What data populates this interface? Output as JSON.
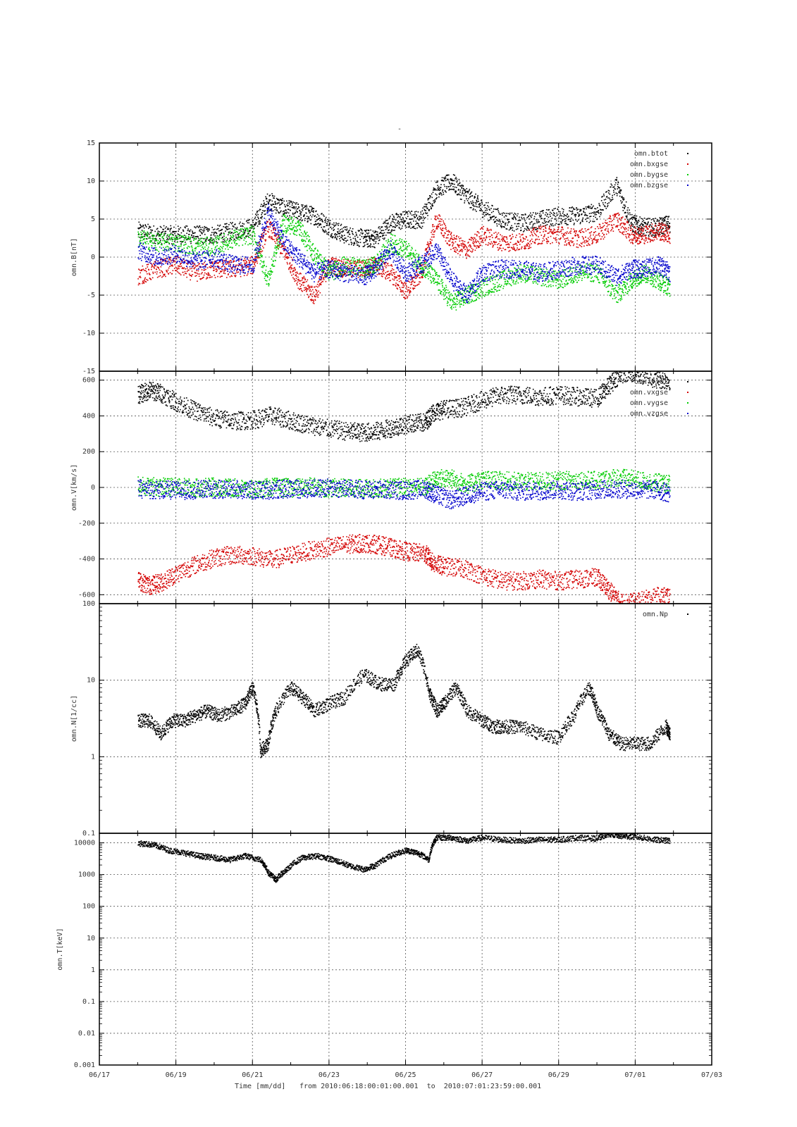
{
  "figure": {
    "title_mark": "-",
    "xlabel": "Time [mm/dd]",
    "range_text": "from 2010:06:18:00:01:00.001  to  2010:07:01:23:59:00.001",
    "x_tick_labels": [
      "06/17",
      "06/19",
      "06/21",
      "06/23",
      "06/25",
      "06/27",
      "06/29",
      "07/01",
      "07/03"
    ]
  },
  "chart_data": [
    {
      "type": "scatter",
      "ylabel": "omn.B[nT]",
      "ylim": [
        -15,
        15
      ],
      "yscale": "linear",
      "yticks": [
        -15,
        -10,
        -5,
        0,
        5,
        10,
        15
      ],
      "ytick_labels": [
        "-15",
        "-10",
        "-5",
        "0",
        "5",
        "10",
        "15"
      ],
      "xlim_days": [
        0,
        16
      ],
      "x_day_axis_note": "06/17 = 0",
      "grid": true,
      "legend_placement": "top-right",
      "series": [
        {
          "name": "omn.btot",
          "color": "#000000",
          "x": [
            1.0,
            1.5,
            2.0,
            2.5,
            3.0,
            3.5,
            4.0,
            4.4,
            4.8,
            5.2,
            5.6,
            6.0,
            6.4,
            6.9,
            7.2,
            7.6,
            8.0,
            8.4,
            8.8,
            9.2,
            9.6,
            10.0,
            10.5,
            11.0,
            11.5,
            12.0,
            12.5,
            13.0,
            13.5,
            13.9,
            14.2,
            14.6,
            14.9
          ],
          "y": [
            3.5,
            3.0,
            3.0,
            3.0,
            3.0,
            3.5,
            4.0,
            7.5,
            6.5,
            6.0,
            5.5,
            4.0,
            3.0,
            2.5,
            2.5,
            4.5,
            5.0,
            5.0,
            9.0,
            10.0,
            8.0,
            6.5,
            5.0,
            4.5,
            5.0,
            5.5,
            5.5,
            6.0,
            9.5,
            4.5,
            4.0,
            4.0,
            4.5
          ]
        },
        {
          "name": "omn.bxgse",
          "color": "#d40000",
          "x": [
            1.0,
            1.5,
            2.0,
            2.5,
            3.0,
            3.5,
            4.0,
            4.4,
            4.8,
            5.2,
            5.6,
            6.0,
            6.4,
            6.9,
            7.2,
            7.6,
            8.0,
            8.4,
            8.8,
            9.2,
            9.6,
            10.0,
            10.5,
            11.0,
            11.5,
            12.0,
            12.5,
            13.0,
            13.5,
            13.9,
            14.2,
            14.6,
            14.9
          ],
          "y": [
            -2.5,
            -1.5,
            -1.0,
            -2.0,
            -1.5,
            -1.5,
            -1.0,
            4.0,
            1.0,
            -3.0,
            -5.0,
            -1.0,
            -1.5,
            -1.5,
            -1.0,
            -2.0,
            -4.5,
            -2.0,
            5.0,
            2.0,
            1.0,
            3.0,
            2.0,
            2.0,
            3.0,
            3.0,
            2.5,
            3.0,
            5.0,
            3.0,
            3.0,
            3.5,
            3.0
          ]
        },
        {
          "name": "omn.bygse",
          "color": "#00cc00",
          "x": [
            1.0,
            1.5,
            2.0,
            2.5,
            3.0,
            3.5,
            4.0,
            4.4,
            4.8,
            5.2,
            5.6,
            6.0,
            6.4,
            6.9,
            7.2,
            7.6,
            8.0,
            8.4,
            8.8,
            9.2,
            9.6,
            10.0,
            10.5,
            11.0,
            11.5,
            12.0,
            12.5,
            13.0,
            13.5,
            13.9,
            14.2,
            14.6,
            14.9
          ],
          "y": [
            2.5,
            2.0,
            2.0,
            1.5,
            1.5,
            2.5,
            3.0,
            -3.0,
            4.5,
            4.0,
            0.5,
            -2.0,
            -1.0,
            -1.5,
            -1.0,
            2.0,
            1.0,
            -1.0,
            -3.0,
            -6.0,
            -5.0,
            -4.0,
            -3.0,
            -2.0,
            -2.5,
            -3.0,
            -2.0,
            -2.0,
            -5.0,
            -3.0,
            -2.0,
            -3.0,
            -4.0
          ]
        },
        {
          "name": "omn.bzgse",
          "color": "#0000cc",
          "x": [
            1.0,
            1.5,
            2.0,
            2.5,
            3.0,
            3.5,
            4.0,
            4.4,
            4.8,
            5.2,
            5.6,
            6.0,
            6.4,
            6.9,
            7.2,
            7.6,
            8.0,
            8.4,
            8.8,
            9.2,
            9.6,
            10.0,
            10.5,
            11.0,
            11.5,
            12.0,
            12.5,
            13.0,
            13.5,
            13.9,
            14.2,
            14.6,
            14.9
          ],
          "y": [
            1.0,
            0.0,
            0.5,
            -0.5,
            0.0,
            -1.0,
            -1.0,
            6.0,
            2.0,
            0.0,
            -2.0,
            -1.5,
            -2.0,
            -2.5,
            -1.5,
            1.0,
            -2.0,
            -1.0,
            1.0,
            -3.0,
            -5.0,
            -2.0,
            -1.5,
            -1.5,
            -2.0,
            -1.5,
            -1.0,
            -1.0,
            -2.5,
            -1.5,
            -1.5,
            -1.0,
            -2.0
          ]
        }
      ]
    },
    {
      "type": "scatter",
      "ylabel": "omn.V[km/s]",
      "ylim": [
        -650,
        650
      ],
      "yscale": "linear",
      "yticks": [
        -600,
        -400,
        -200,
        0,
        200,
        400,
        600
      ],
      "ytick_labels": [
        "-600",
        "-400",
        "-200",
        "0",
        "200",
        "400",
        "600"
      ],
      "xlim_days": [
        0,
        16
      ],
      "grid": true,
      "legend_placement": "top-right",
      "series": [
        {
          "name": "omn.vtot",
          "color": "#000000",
          "x": [
            1.0,
            1.3,
            1.6,
            2.0,
            2.5,
            3.0,
            3.5,
            4.0,
            4.5,
            5.0,
            5.5,
            6.0,
            6.5,
            6.9,
            7.3,
            7.7,
            8.1,
            8.5,
            8.7,
            9.0,
            9.5,
            10.0,
            10.5,
            11.0,
            11.5,
            12.0,
            12.5,
            13.0,
            13.3,
            13.6,
            14.0,
            14.5,
            14.9
          ],
          "y": [
            520,
            545,
            530,
            480,
            430,
            390,
            375,
            380,
            405,
            375,
            350,
            330,
            315,
            310,
            318,
            340,
            360,
            365,
            420,
            440,
            450,
            490,
            520,
            520,
            510,
            520,
            510,
            500,
            570,
            640,
            640,
            610,
            600
          ]
        },
        {
          "name": "omn.vxgse",
          "color": "#d40000",
          "x": [
            1.0,
            1.3,
            1.6,
            2.0,
            2.5,
            3.0,
            3.5,
            4.0,
            4.5,
            5.0,
            5.5,
            6.0,
            6.5,
            6.9,
            7.3,
            7.7,
            8.1,
            8.5,
            8.7,
            9.0,
            9.5,
            10.0,
            10.5,
            11.0,
            11.5,
            12.0,
            12.5,
            13.0,
            13.3,
            13.6,
            14.0,
            14.5,
            14.9
          ],
          "y": [
            -520,
            -545,
            -530,
            -480,
            -430,
            -390,
            -375,
            -380,
            -405,
            -375,
            -350,
            -330,
            -315,
            -310,
            -318,
            -340,
            -360,
            -365,
            -420,
            -440,
            -450,
            -490,
            -520,
            -520,
            -510,
            -520,
            -510,
            -500,
            -570,
            -640,
            -640,
            -610,
            -600
          ]
        },
        {
          "name": "omn.vygse",
          "color": "#00cc00",
          "x": [
            1.0,
            1.5,
            2.0,
            2.5,
            3.0,
            3.5,
            4.0,
            4.5,
            5.0,
            5.5,
            6.0,
            6.5,
            7.0,
            7.5,
            8.0,
            8.5,
            8.8,
            9.2,
            9.6,
            10.0,
            10.5,
            11.0,
            11.5,
            12.0,
            12.5,
            13.0,
            13.5,
            14.0,
            14.5,
            14.9
          ],
          "y": [
            10,
            5,
            5,
            0,
            5,
            0,
            -10,
            5,
            0,
            5,
            0,
            0,
            -5,
            0,
            5,
            5,
            55,
            50,
            20,
            45,
            40,
            35,
            35,
            40,
            45,
            40,
            60,
            45,
            30,
            20
          ]
        },
        {
          "name": "omn.vzgse",
          "color": "#0000cc",
          "x": [
            1.0,
            1.5,
            2.0,
            2.5,
            3.0,
            3.5,
            4.0,
            4.5,
            5.0,
            5.5,
            6.0,
            6.5,
            7.0,
            7.5,
            8.0,
            8.5,
            8.8,
            9.2,
            9.6,
            10.0,
            10.5,
            11.0,
            11.5,
            12.0,
            12.5,
            13.0,
            13.5,
            14.0,
            14.5,
            14.9
          ],
          "y": [
            -5,
            -10,
            -15,
            -10,
            -10,
            -5,
            -15,
            -10,
            -5,
            -5,
            0,
            -5,
            -10,
            -10,
            -15,
            -5,
            -40,
            -70,
            -40,
            -20,
            -10,
            -20,
            -15,
            -10,
            -20,
            -10,
            -5,
            -10,
            -10,
            -30
          ]
        }
      ]
    },
    {
      "type": "scatter",
      "ylabel": "omn.N[1/cc]",
      "ylim": [
        0.1,
        100
      ],
      "yscale": "log",
      "yticks": [
        0.1,
        1,
        10,
        100
      ],
      "ytick_labels": [
        "0.1",
        "1",
        "10",
        "100"
      ],
      "xlim_days": [
        0,
        16
      ],
      "grid": true,
      "legend_placement": "top-right",
      "series": [
        {
          "name": "omn.Np",
          "color": "#000000",
          "x": [
            1.0,
            1.3,
            1.6,
            1.9,
            2.2,
            2.5,
            2.8,
            3.1,
            3.5,
            3.8,
            4.0,
            4.2,
            4.4,
            4.6,
            5.0,
            5.3,
            5.6,
            6.0,
            6.4,
            6.9,
            7.3,
            7.7,
            8.0,
            8.3,
            8.6,
            8.8,
            9.0,
            9.3,
            9.6,
            10.0,
            10.3,
            10.6,
            11.0,
            11.5,
            12.0,
            12.4,
            12.8,
            13.0,
            13.3,
            13.6,
            14.0,
            14.4,
            14.8,
            14.9
          ],
          "y": [
            3,
            3,
            2,
            3,
            3,
            3.5,
            4,
            3.5,
            4,
            5,
            8,
            1.2,
            1.5,
            4,
            8,
            6,
            4,
            5,
            6,
            12,
            9,
            9,
            18,
            25,
            7,
            4,
            5,
            8,
            4,
            3,
            2.5,
            2.5,
            2.5,
            2,
            1.8,
            3.5,
            8,
            4,
            2,
            1.5,
            1.5,
            1.5,
            2.5,
            2
          ]
        }
      ]
    },
    {
      "type": "scatter",
      "ylabel": "omn.T[keV]",
      "ylim": [
        0.001,
        20000
      ],
      "yscale": "log",
      "yticks": [
        0.001,
        0.01,
        0.1,
        1,
        10,
        100,
        1000,
        10000
      ],
      "ytick_labels": [
        "0.001",
        "0.01",
        "0.1",
        "1",
        "10",
        "100",
        "1000",
        "10000"
      ],
      "xlim_days": [
        0,
        16
      ],
      "grid": true,
      "legend_placement": "none",
      "series": [
        {
          "name": "",
          "color": "#000000",
          "x": [
            1.0,
            1.4,
            1.8,
            2.2,
            2.6,
            3.0,
            3.4,
            3.8,
            4.2,
            4.4,
            4.6,
            4.9,
            5.3,
            5.7,
            6.1,
            6.5,
            6.9,
            7.2,
            7.6,
            8.0,
            8.3,
            8.6,
            8.8,
            9.2,
            9.6,
            10.0,
            10.5,
            11.0,
            11.5,
            12.0,
            12.5,
            13.0,
            13.3,
            13.6,
            14.0,
            14.5,
            14.9
          ],
          "y": [
            10000,
            9000,
            6000,
            5000,
            4000,
            3500,
            3000,
            4000,
            3000,
            1200,
            700,
            1500,
            3500,
            4000,
            3000,
            2000,
            1500,
            2000,
            4000,
            6000,
            5000,
            3000,
            15000,
            15000,
            12000,
            15000,
            13000,
            12000,
            13000,
            13000,
            15000,
            14000,
            20000,
            17000,
            16000,
            13000,
            12000
          ]
        }
      ]
    }
  ]
}
